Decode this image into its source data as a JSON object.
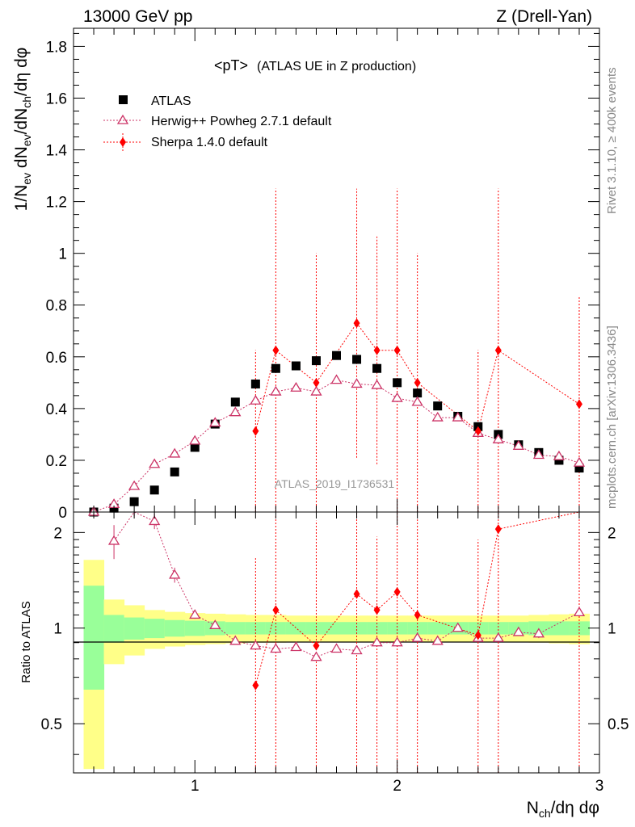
{
  "header": {
    "energy": "13000 GeV pp",
    "process": "Z (Drell-Yan)"
  },
  "side_text": {
    "rivet": "Rivet 3.1.10, ≥ 400k events",
    "mcplots": "mcplots.cern.ch [arXiv:1306.3436]"
  },
  "analysis_id": "ATLAS_2019_I1736531",
  "colors": {
    "data": "#000000",
    "herwig": "#cc3366",
    "sherpa": "#ff0000",
    "band_inner": "#99ff99",
    "band_outer": "#ffff88"
  },
  "chart_data": [
    {
      "type": "scatter",
      "title": "<pT> (ATLAS UE in Z production)",
      "title_main": "<pT>",
      "title_sub": "(ATLAS UE in Z production)",
      "ylabel": "1/N_ev dN_ev/dN_ch/dη dφ",
      "xlim": [
        0.4,
        3.0
      ],
      "ylim": [
        0,
        1.87
      ],
      "yticks": [
        {
          "v": 0,
          "label": "0"
        },
        {
          "v": 0.2,
          "label": "0.2"
        },
        {
          "v": 0.4,
          "label": "0.4"
        },
        {
          "v": 0.6,
          "label": "0.6"
        },
        {
          "v": 0.8,
          "label": "0.8"
        },
        {
          "v": 1.0,
          "label": "1"
        },
        {
          "v": 1.2,
          "label": "1.2"
        },
        {
          "v": 1.4,
          "label": "1.4"
        },
        {
          "v": 1.6,
          "label": "1.6"
        },
        {
          "v": 1.8,
          "label": "1.8"
        }
      ],
      "legend": [
        {
          "key": "data",
          "label": "ATLAS",
          "marker": "square"
        },
        {
          "key": "herwig",
          "label": "Herwig++ Powheg 2.7.1 default",
          "marker": "open-triangle"
        },
        {
          "key": "sherpa",
          "label": "Sherpa 1.4.0 default",
          "marker": "diamond"
        }
      ],
      "series": [
        {
          "name": "ATLAS",
          "x": [
            0.5,
            0.6,
            0.7,
            0.8,
            0.9,
            1.0,
            1.1,
            1.2,
            1.3,
            1.4,
            1.5,
            1.6,
            1.7,
            1.8,
            1.9,
            2.0,
            2.1,
            2.2,
            2.3,
            2.4,
            2.5,
            2.6,
            2.7,
            2.8,
            2.9
          ],
          "y": [
            0.0,
            0.015,
            0.04,
            0.085,
            0.155,
            0.25,
            0.34,
            0.425,
            0.495,
            0.555,
            0.565,
            0.585,
            0.605,
            0.59,
            0.555,
            0.5,
            0.46,
            0.41,
            0.37,
            0.33,
            0.3,
            0.26,
            0.23,
            0.2,
            0.17
          ]
        },
        {
          "name": "Herwig++ Powheg 2.7.1 default",
          "x": [
            0.5,
            0.6,
            0.7,
            0.8,
            0.9,
            1.0,
            1.1,
            1.2,
            1.3,
            1.4,
            1.5,
            1.6,
            1.7,
            1.8,
            1.9,
            2.0,
            2.1,
            2.2,
            2.3,
            2.4,
            2.5,
            2.6,
            2.7,
            2.8,
            2.9
          ],
          "y": [
            0.0,
            0.03,
            0.1,
            0.185,
            0.225,
            0.275,
            0.345,
            0.385,
            0.43,
            0.465,
            0.48,
            0.465,
            0.51,
            0.495,
            0.49,
            0.44,
            0.425,
            0.365,
            0.365,
            0.305,
            0.28,
            0.255,
            0.22,
            0.215,
            0.19
          ],
          "err": [
            0,
            0,
            0,
            0,
            0,
            0,
            0,
            0,
            0,
            0,
            0,
            0,
            0,
            0,
            0,
            0,
            0,
            0,
            0,
            0,
            0,
            0,
            0,
            0,
            0
          ]
        },
        {
          "name": "Sherpa 1.4.0 default",
          "x": [
            1.3,
            1.4,
            1.6,
            1.8,
            1.9,
            2.0,
            2.1,
            2.4,
            2.5,
            2.9
          ],
          "y": [
            0.313,
            0.625,
            0.5,
            0.73,
            0.625,
            0.625,
            0.5,
            0.313,
            0.625,
            0.417
          ],
          "err_lo": [
            0.313,
            0.625,
            0.5,
            0.52,
            0.44,
            0.625,
            0.5,
            0.313,
            0.625,
            0.417
          ],
          "err_hi": [
            0.313,
            0.625,
            0.5,
            0.52,
            0.44,
            0.625,
            0.5,
            0.313,
            0.625,
            0.417
          ]
        }
      ]
    },
    {
      "type": "scatter",
      "ylabel": "Ratio to ATLAS",
      "xlabel": "N_ch/dη dφ",
      "xlim": [
        0.4,
        3.0
      ],
      "ylim": [
        0.35,
        2.32
      ],
      "log_y": true,
      "yticks": [
        {
          "v": 0.5,
          "label": "0.5"
        },
        {
          "v": 1,
          "label": "1"
        },
        {
          "v": 2,
          "label": "2"
        }
      ],
      "xticks": [
        {
          "v": 1,
          "label": "1"
        },
        {
          "v": 2,
          "label": "2"
        },
        {
          "v": 3,
          "label": "3"
        }
      ],
      "band_edges": [
        0.45,
        0.55,
        0.65,
        0.75,
        0.85,
        0.95,
        1.05,
        1.15,
        1.25,
        1.35,
        1.45,
        1.55,
        1.65,
        1.75,
        1.85,
        1.95,
        2.05,
        2.15,
        2.25,
        2.35,
        2.45,
        2.55,
        2.65,
        2.75,
        2.85,
        2.95
      ],
      "band_inner": [
        0.64,
        0.9,
        0.92,
        0.93,
        0.94,
        0.945,
        0.95,
        0.955,
        0.955,
        0.955,
        0.955,
        0.955,
        0.955,
        0.955,
        0.955,
        0.955,
        0.955,
        0.955,
        0.955,
        0.955,
        0.955,
        0.955,
        0.95,
        0.95,
        0.95
      ],
      "band_outer": [
        0.36,
        0.77,
        0.82,
        0.86,
        0.875,
        0.885,
        0.89,
        0.895,
        0.9,
        0.9,
        0.905,
        0.905,
        0.905,
        0.905,
        0.905,
        0.905,
        0.905,
        0.905,
        0.905,
        0.905,
        0.905,
        0.905,
        0.9,
        0.895,
        0.89
      ],
      "series": [
        {
          "name": "Herwig++ Powheg 2.7.1 default",
          "x": [
            0.6,
            0.7,
            0.8,
            0.9,
            1.0,
            1.1,
            1.2,
            1.3,
            1.4,
            1.5,
            1.6,
            1.7,
            1.8,
            1.9,
            2.0,
            2.1,
            2.2,
            2.3,
            2.4,
            2.5,
            2.6,
            2.7,
            2.9
          ],
          "y": [
            1.88,
            2.45,
            2.17,
            1.47,
            1.1,
            1.02,
            0.91,
            0.88,
            0.86,
            0.87,
            0.81,
            0.86,
            0.85,
            0.9,
            0.9,
            0.93,
            0.91,
            1.0,
            0.93,
            0.93,
            0.97,
            0.96,
            1.12
          ],
          "err_lo": [
            0.23,
            0.2,
            0.12,
            0.08,
            0.03,
            0,
            0,
            0,
            0,
            0,
            0.02,
            0,
            0.02,
            0,
            0,
            0.02,
            0,
            0,
            0,
            0,
            0.02,
            0.03,
            0.04
          ],
          "err_hi": [
            0.23,
            0.2,
            0.12,
            0.08,
            0.03,
            0,
            0,
            0,
            0,
            0,
            0.02,
            0,
            0.02,
            0,
            0,
            0.02,
            0,
            0,
            0,
            0,
            0.02,
            0.03,
            0.04
          ]
        },
        {
          "name": "Sherpa 1.4.0 default",
          "x": [
            1.3,
            1.4,
            1.6,
            1.8,
            1.9,
            2.0,
            2.1,
            2.4,
            2.5,
            2.9
          ],
          "y": [
            0.66,
            1.14,
            0.88,
            1.28,
            1.14,
            1.3,
            1.1,
            0.95,
            2.05,
            2.4
          ],
          "err_lo": [
            0.66,
            1.14,
            0.88,
            1.1,
            0.8,
            1.3,
            1.1,
            0.95,
            2.05,
            2.4
          ],
          "err_hi": [
            1.0,
            1.14,
            1.3,
            1.1,
            0.8,
            1.3,
            1.1,
            0.95,
            2.05,
            2.4
          ]
        }
      ]
    }
  ]
}
